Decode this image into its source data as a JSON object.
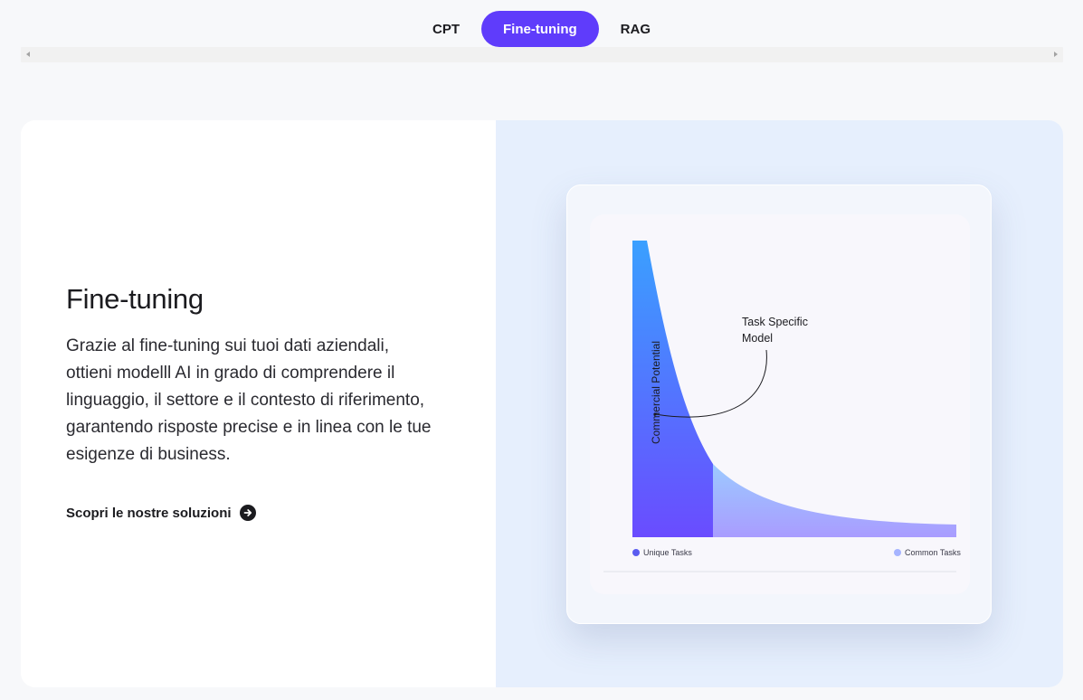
{
  "tabs": [
    {
      "label": "CPT",
      "active": false
    },
    {
      "label": "Fine-tuning",
      "active": true
    },
    {
      "label": "RAG",
      "active": false
    }
  ],
  "colors": {
    "accent": "#5f3cfb",
    "panel_bg": "#e6effd",
    "curve_top": "#3aa0ff",
    "curve_bottom": "#6a4cff"
  },
  "content": {
    "title": "Fine-tuning",
    "description": "Grazie al fine-tuning sui tuoi dati aziendali, ottieni modelll AI in grado di comprendere il linguaggio, il settore e il contesto di riferimento, garantendo risposte precise e in linea con le tue esigenze di business.",
    "cta_label": "Scopri le nostre soluzioni",
    "cta_icon": "arrow-right-circle-icon"
  },
  "illustration": {
    "y_axis_label": "Commercial Potential",
    "annotation": "Task Specific Model",
    "legend": [
      {
        "label": "Unique Tasks",
        "color": "#5a5cf0"
      },
      {
        "label": "Common Tasks",
        "color": "#a6b4ff"
      }
    ]
  }
}
